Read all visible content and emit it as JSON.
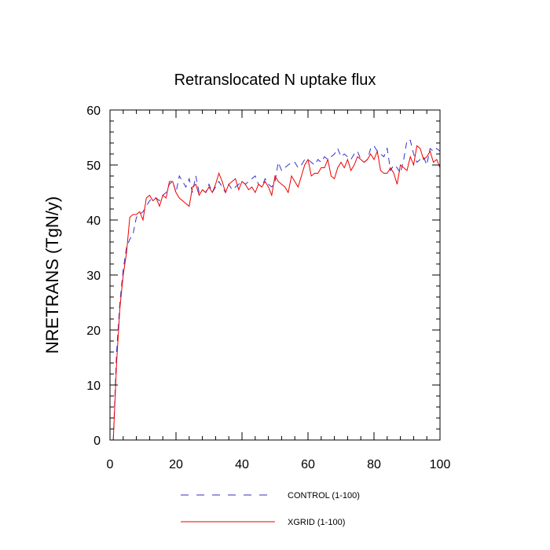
{
  "chart_data": {
    "type": "line",
    "title": "Retranslocated N uptake flux",
    "xlabel": "",
    "ylabel": "NRETRANS  (TgN/y)",
    "xlim": [
      0,
      100
    ],
    "ylim": [
      0,
      60
    ],
    "xticks": [
      0,
      20,
      40,
      60,
      80,
      100
    ],
    "yticks": [
      0,
      10,
      20,
      30,
      40,
      50,
      60
    ],
    "grid": false,
    "legend_position": "bottom-center",
    "x": [
      1,
      2,
      3,
      4,
      5,
      6,
      7,
      8,
      9,
      10,
      11,
      12,
      13,
      14,
      15,
      16,
      17,
      18,
      19,
      20,
      21,
      22,
      23,
      24,
      25,
      26,
      27,
      28,
      29,
      30,
      31,
      32,
      33,
      34,
      35,
      36,
      37,
      38,
      39,
      40,
      41,
      42,
      43,
      44,
      45,
      46,
      47,
      48,
      49,
      50,
      51,
      52,
      53,
      54,
      55,
      56,
      57,
      58,
      59,
      60,
      61,
      62,
      63,
      64,
      65,
      66,
      67,
      68,
      69,
      70,
      71,
      72,
      73,
      74,
      75,
      76,
      77,
      78,
      79,
      80,
      81,
      82,
      83,
      84,
      85,
      86,
      87,
      88,
      89,
      90,
      91,
      92,
      93,
      94,
      95,
      96,
      97,
      98,
      99,
      100
    ],
    "series": [
      {
        "name": "CONTROL (1-100)",
        "color": "#3333cc",
        "style": "dashed",
        "values": [
          0,
          16,
          25,
          31,
          35,
          36.5,
          37.5,
          40.5,
          41,
          41.5,
          42.5,
          43.5,
          44,
          44,
          43.5,
          44.5,
          45,
          46.5,
          47,
          45,
          48,
          47,
          46,
          47.5,
          45,
          48,
          45,
          45.5,
          45,
          46.5,
          45,
          46,
          47,
          46,
          45,
          46.5,
          45.5,
          46,
          46.5,
          47,
          46.5,
          47,
          47.5,
          48,
          46.5,
          46,
          47.5,
          46.5,
          46,
          47,
          50.5,
          49,
          49.5,
          50,
          50.5,
          50.5,
          49.5,
          50,
          51,
          51,
          50.5,
          50,
          51,
          50.5,
          51.5,
          51,
          51.5,
          52,
          53,
          51.5,
          52,
          51.5,
          51,
          52,
          52.5,
          51,
          50.5,
          51,
          53,
          53.5,
          52.5,
          52,
          51.5,
          53,
          49,
          50,
          49.5,
          48.5,
          51,
          54.5,
          54.5,
          52,
          50.5,
          51,
          51.5,
          50,
          53,
          52.5,
          53,
          52.5
        ]
      },
      {
        "name": "XGRID (1-100)",
        "color": "#ee0000",
        "style": "solid",
        "values": [
          0,
          14,
          24,
          30,
          34,
          40.5,
          41,
          41,
          41.5,
          40,
          44,
          44.5,
          43.5,
          44,
          42.5,
          44.5,
          44,
          47,
          47,
          45,
          44,
          43.5,
          43,
          42.5,
          46,
          46.5,
          44.5,
          45.5,
          45,
          46,
          45,
          46.5,
          48.5,
          47,
          45,
          46.5,
          47,
          47.5,
          45.5,
          47,
          46.5,
          45.5,
          46,
          45,
          46.5,
          46,
          47,
          46,
          44.5,
          48,
          47,
          46.5,
          46,
          45,
          48,
          47,
          46,
          48,
          50,
          51,
          48,
          48.5,
          48.5,
          49.5,
          49.5,
          51,
          48,
          47.5,
          49.5,
          50.5,
          49.5,
          51,
          49,
          50,
          51.5,
          51,
          50.5,
          51,
          52,
          51,
          52.5,
          49,
          48.5,
          48.5,
          49.5,
          48.5,
          46.5,
          50,
          49.5,
          49,
          51.5,
          50,
          53.5,
          53,
          51,
          51.5,
          52.5,
          50.5,
          51,
          49.5
        ]
      }
    ]
  }
}
